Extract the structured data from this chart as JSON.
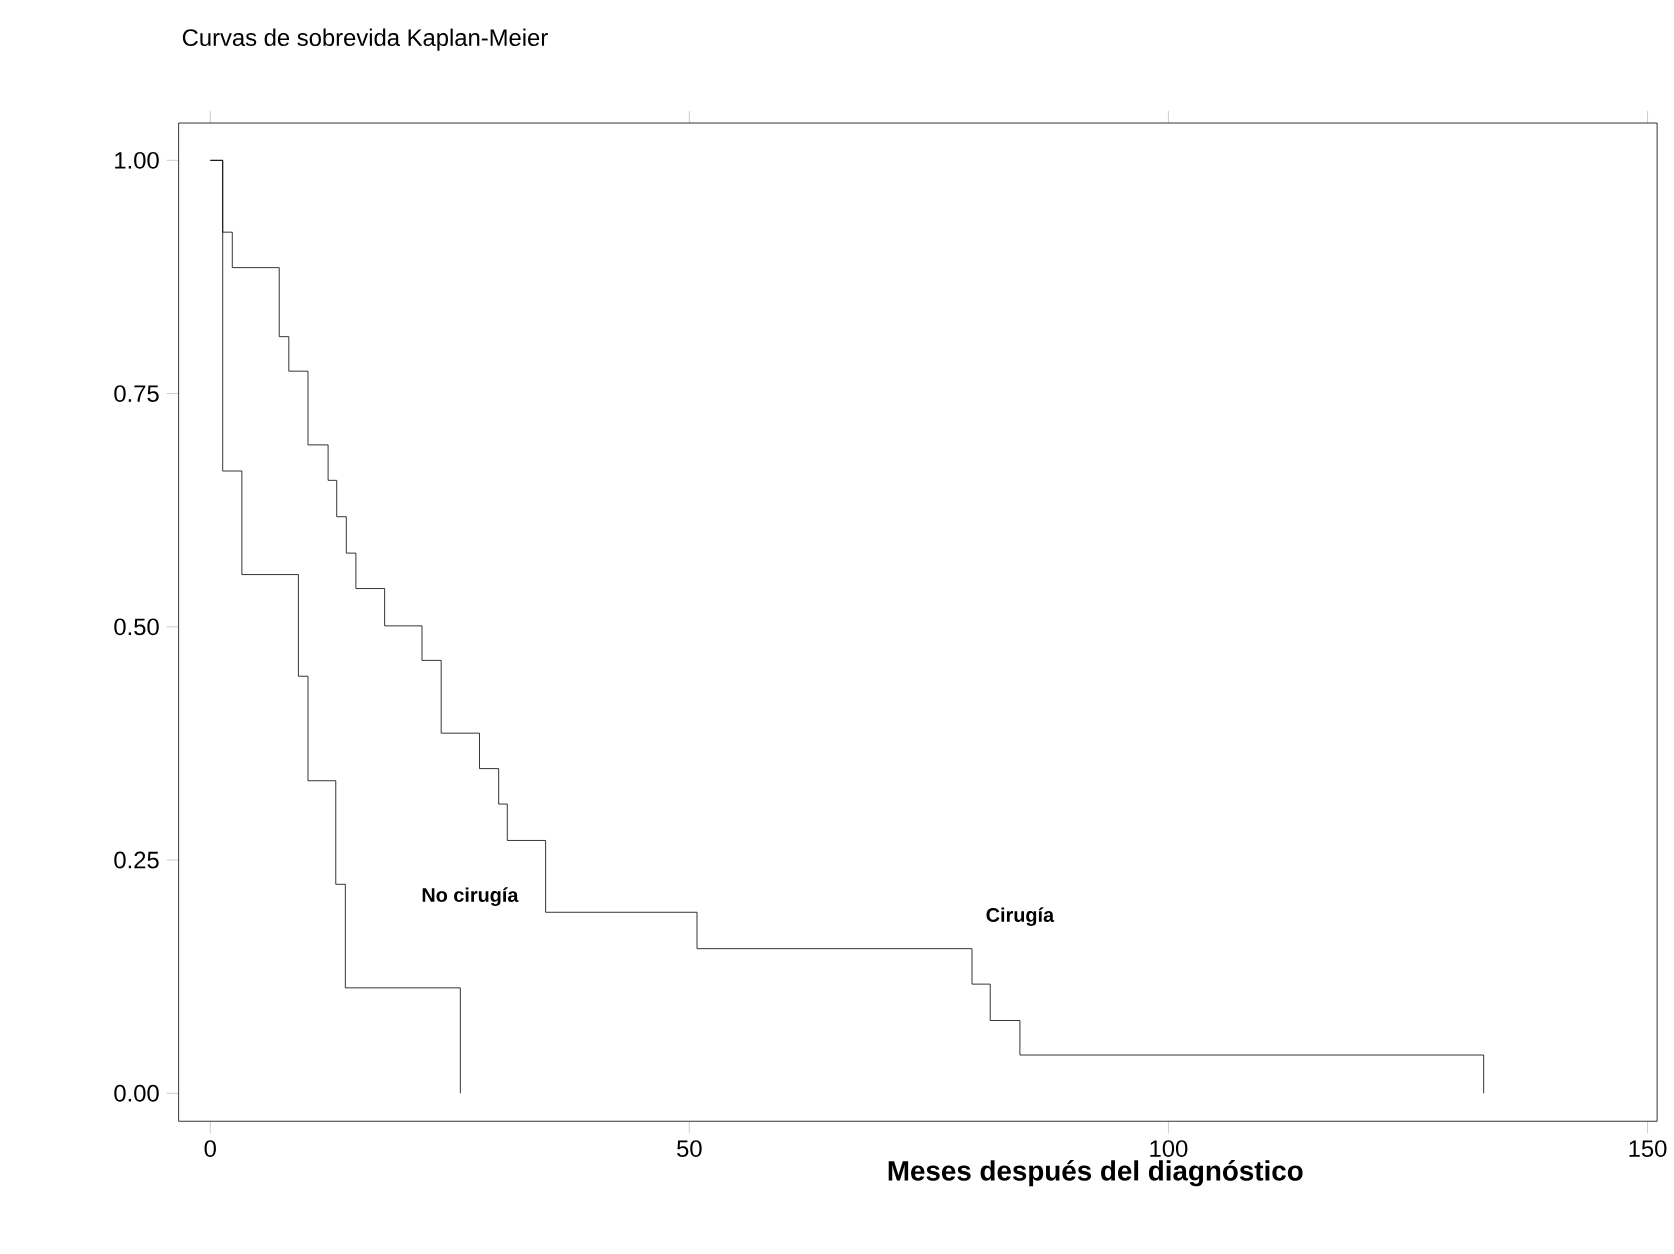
{
  "chart_data": {
    "type": "step",
    "title": "Curvas de sobrevida Kaplan-Meier",
    "xlabel": "Meses después del diagnóstico",
    "series": [
      {
        "color": "#000000",
        "x": [
          0,
          1.3,
          2.3,
          7.2,
          8.2,
          10.2,
          12.3,
          13.2,
          14.2,
          15.2,
          18.2,
          22.1,
          24.1,
          28.1,
          30.1,
          31.0,
          35.0,
          50.8,
          79.5,
          81.4,
          84.5,
          132.9
        ],
        "values": [
          1,
          0.923,
          0.885,
          0.811,
          0.774,
          0.695,
          0.657,
          0.618,
          0.579,
          0.541,
          0.501,
          0.464,
          0.386,
          0.348,
          0.31,
          0.271,
          0.194,
          0.155,
          0.117,
          0.078,
          0.041,
          0
        ]
      },
      {
        "color": "#000000",
        "x": [
          0,
          1.3,
          3.3,
          9.2,
          10.2,
          13.1,
          14.1,
          26.1
        ],
        "values": [
          1,
          0.667,
          0.556,
          0.447,
          0.335,
          0.224,
          0.113,
          0
        ]
      }
    ],
    "annotations": [
      "No cirugía",
      "Cirugía"
    ],
    "xlim": [
      -3.3,
      151
    ],
    "ylim": [
      -0.03,
      1.04
    ],
    "xticks": [
      0,
      50,
      100,
      150
    ],
    "yticks": [
      {
        "value": 0,
        "label": "0.00"
      },
      {
        "value": 0.25,
        "label": "0.25"
      },
      {
        "value": 0.5,
        "label": "0.50"
      },
      {
        "value": 0.75,
        "label": "0.75"
      },
      {
        "value": 1,
        "label": "1.00"
      }
    ]
  }
}
